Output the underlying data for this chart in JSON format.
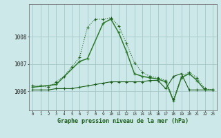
{
  "title": "Graphe pression niveau de la mer (hPa)",
  "bg_color": "#cce8e8",
  "grid_color": "#aacccc",
  "line_color_dark": "#1a5c1a",
  "line_color_mid": "#2d7a2d",
  "x_ticks": [
    0,
    1,
    2,
    3,
    4,
    5,
    6,
    7,
    8,
    9,
    10,
    11,
    12,
    13,
    14,
    15,
    16,
    17,
    18,
    19,
    20,
    21,
    22,
    23
  ],
  "ylim": [
    1005.3,
    1009.2
  ],
  "yticks": [
    1006,
    1007,
    1008
  ],
  "series1_x": [
    0,
    1,
    2,
    3,
    4,
    5,
    6,
    7,
    8,
    9,
    10,
    11,
    12,
    13,
    14,
    15,
    16,
    17,
    18,
    19,
    20,
    21,
    22,
    23
  ],
  "series1_y": [
    1006.2,
    1006.2,
    1006.15,
    1006.35,
    1006.55,
    1006.9,
    1007.25,
    1008.35,
    1008.65,
    1008.65,
    1008.7,
    1008.4,
    1007.75,
    1007.05,
    1006.7,
    1006.55,
    1006.5,
    1006.4,
    1005.7,
    1006.55,
    1006.7,
    1006.5,
    1006.1,
    1006.05
  ],
  "series2_x": [
    0,
    1,
    2,
    3,
    4,
    5,
    6,
    7,
    8,
    9,
    10,
    11,
    12,
    13,
    14,
    15,
    16,
    17,
    18,
    19,
    20,
    21,
    22,
    23
  ],
  "series2_y": [
    1006.05,
    1006.05,
    1006.05,
    1006.1,
    1006.1,
    1006.1,
    1006.15,
    1006.2,
    1006.25,
    1006.3,
    1006.35,
    1006.35,
    1006.35,
    1006.35,
    1006.35,
    1006.4,
    1006.4,
    1006.1,
    1006.55,
    1006.65,
    1006.05,
    1006.05,
    1006.05,
    1006.05
  ],
  "series3_x": [
    0,
    3,
    6,
    7,
    9,
    10,
    11,
    12,
    13,
    14,
    15,
    16,
    17,
    18,
    19,
    20,
    21,
    22,
    23
  ],
  "series3_y": [
    1006.15,
    1006.25,
    1007.1,
    1007.2,
    1008.5,
    1008.65,
    1008.15,
    1007.45,
    1006.65,
    1006.55,
    1006.5,
    1006.45,
    1006.35,
    1005.65,
    1006.5,
    1006.65,
    1006.4,
    1006.05,
    1006.05
  ]
}
